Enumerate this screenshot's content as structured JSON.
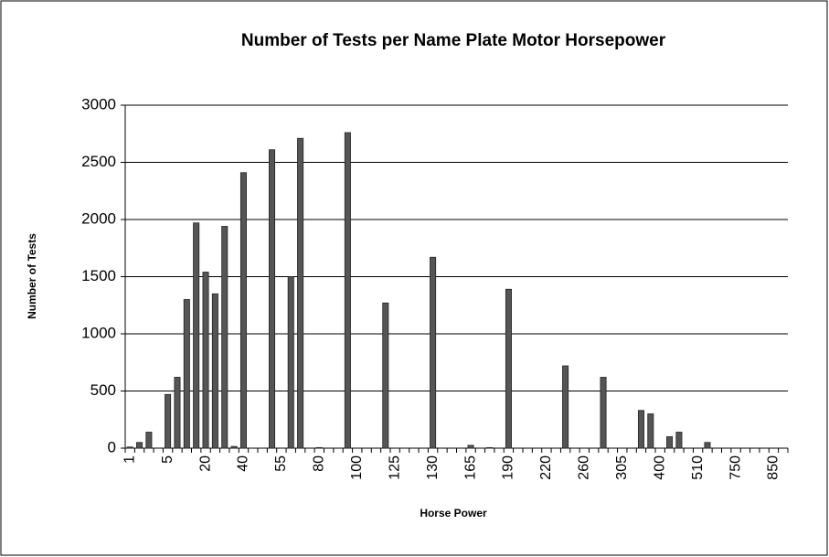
{
  "chart_data": {
    "type": "bar",
    "title": "Number of Tests per Name Plate Motor Horsepower",
    "x_label": "Horse Power",
    "y_label": "Number of Tests",
    "categories": [
      "1",
      null,
      null,
      null,
      "5",
      null,
      null,
      null,
      "20",
      null,
      null,
      null,
      "40",
      null,
      null,
      null,
      "55",
      null,
      null,
      null,
      "80",
      null,
      null,
      null,
      "100",
      null,
      null,
      null,
      "125",
      null,
      null,
      null,
      "130",
      null,
      null,
      null,
      "165",
      null,
      null,
      null,
      "190",
      null,
      null,
      null,
      "220",
      null,
      null,
      null,
      "260",
      null,
      null,
      null,
      "305",
      null,
      null,
      null,
      "400",
      null,
      null,
      null,
      "510",
      null,
      null,
      null,
      "750",
      null,
      null,
      null,
      "850",
      null
    ],
    "values": [
      10,
      50,
      140,
      0,
      470,
      620,
      1300,
      1970,
      1540,
      1350,
      1940,
      15,
      2410,
      0,
      0,
      2610,
      0,
      1500,
      2710,
      0,
      5,
      0,
      0,
      2760,
      0,
      0,
      0,
      1270,
      0,
      0,
      0,
      0,
      1670,
      0,
      0,
      0,
      25,
      0,
      5,
      0,
      1390,
      0,
      0,
      0,
      0,
      0,
      720,
      0,
      0,
      0,
      620,
      0,
      0,
      0,
      330,
      300,
      0,
      100,
      140,
      0,
      0,
      50,
      0,
      0,
      0,
      0,
      0,
      0,
      0,
      0
    ],
    "color": "#555555",
    "ylim": [
      0,
      3000
    ],
    "yticks": [
      0,
      500,
      1000,
      1500,
      2000,
      2500,
      3000
    ],
    "grid": true
  }
}
